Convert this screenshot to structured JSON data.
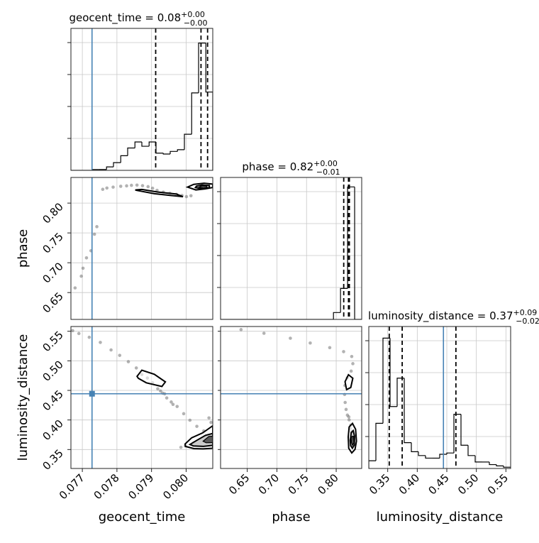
{
  "accent_color": "#4682b4",
  "chart_data": {
    "type": "corner",
    "parameters": [
      "geocent_time",
      "phase",
      "luminosity_distance"
    ],
    "axis_labels": {
      "geocent_time": "geocent_time",
      "phase": "phase",
      "luminosity_distance": "luminosity_distance"
    },
    "ranges": {
      "geocent_time": [
        0.07667,
        0.08077
      ],
      "phase": [
        0.605,
        0.843
      ],
      "luminosity_distance": [
        0.318,
        0.558
      ]
    },
    "ticks": {
      "geocent_time": [
        0.077,
        0.078,
        0.079,
        0.08
      ],
      "phase": [
        0.65,
        0.7,
        0.75,
        0.8
      ],
      "luminosity_distance": [
        0.35,
        0.4,
        0.45,
        0.5,
        0.55
      ]
    },
    "tick_labels": {
      "geocent_time": [
        "0.077",
        "0.078",
        "0.079",
        "0.080"
      ],
      "phase": [
        "0.65",
        "0.70",
        "0.75",
        "0.80"
      ],
      "luminosity_distance": [
        "0.35",
        "0.40",
        "0.45",
        "0.50",
        "0.55"
      ]
    },
    "titles": {
      "geocent_time": {
        "text": "geocent_time = 0.08",
        "plus": "+0.00",
        "minus": "−0.00"
      },
      "phase": {
        "text": "phase = 0.82",
        "plus": "+0.00",
        "minus": "−0.01"
      },
      "luminosity_distance": {
        "text": "luminosity_distance = 0.37",
        "plus": "+0.09",
        "minus": "−0.02"
      }
    },
    "truths": {
      "geocent_time": 0.07728,
      "phase": null,
      "luminosity_distance": 0.4443
    },
    "quantiles": {
      "geocent_time": [
        0.07912,
        0.08043,
        0.08062
      ],
      "phase": [
        0.8127,
        0.8207,
        0.8222
      ],
      "luminosity_distance": [
        0.3526,
        0.3745,
        0.4654
      ]
    },
    "histograms": {
      "geocent_time": {
        "edges": [
          0.07667,
          0.07688,
          0.07708,
          0.07729,
          0.07749,
          0.0777,
          0.0779,
          0.07811,
          0.07831,
          0.07852,
          0.07872,
          0.07893,
          0.07913,
          0.07934,
          0.07954,
          0.07975,
          0.07995,
          0.08016,
          0.08036,
          0.08057,
          0.08077
        ],
        "counts": [
          0,
          0,
          0,
          1,
          1,
          4,
          9,
          17,
          26,
          33,
          28,
          33,
          20,
          19,
          22,
          24,
          42,
          90,
          148,
          91
        ],
        "ymax": 165
      },
      "phase": {
        "edges": [
          0.605,
          0.6169,
          0.6288,
          0.6407,
          0.6526,
          0.6645,
          0.6764,
          0.6883,
          0.7002,
          0.7121,
          0.724,
          0.7359,
          0.7478,
          0.7597,
          0.7716,
          0.7835,
          0.7954,
          0.8073,
          0.8192,
          0.8311,
          0.843
        ],
        "counts": [
          0,
          0,
          0,
          0,
          0,
          0,
          0,
          0,
          0,
          0,
          0,
          0,
          0,
          0,
          0,
          0,
          8,
          36,
          154,
          0
        ],
        "ymax": 165
      },
      "luminosity_distance": {
        "edges": [
          0.318,
          0.33,
          0.342,
          0.354,
          0.366,
          0.378,
          0.39,
          0.402,
          0.414,
          0.426,
          0.438,
          0.45,
          0.462,
          0.474,
          0.486,
          0.498,
          0.51,
          0.522,
          0.534,
          0.546,
          0.558
        ],
        "counts": [
          6,
          35,
          101,
          48,
          70,
          20,
          13,
          10,
          8,
          8,
          11,
          12,
          42,
          18,
          10,
          5,
          5,
          3,
          2,
          1
        ],
        "ymax": 110
      }
    },
    "samples": {
      "geocent_time_phase": [
        [
          0.07828,
          0.8289
        ],
        [
          0.07842,
          0.8298
        ],
        [
          0.07858,
          0.8302
        ],
        [
          0.07874,
          0.8292
        ],
        [
          0.0789,
          0.8276
        ],
        [
          0.07903,
          0.8249
        ],
        [
          0.07916,
          0.8214
        ],
        [
          0.07934,
          0.8184
        ],
        [
          0.07953,
          0.8165
        ],
        [
          0.07972,
          0.8146
        ],
        [
          0.07988,
          0.8128
        ],
        [
          0.08001,
          0.8108
        ],
        [
          0.08014,
          0.8123
        ],
        [
          0.0803,
          0.8242
        ],
        [
          0.08044,
          0.8278
        ],
        [
          0.08056,
          0.8284
        ],
        [
          0.08066,
          0.8272
        ],
        [
          0.08048,
          0.8294
        ],
        [
          0.08037,
          0.8266
        ],
        [
          0.07811,
          0.8282
        ],
        [
          0.07789,
          0.8268
        ],
        [
          0.07771,
          0.8253
        ],
        [
          0.07759,
          0.8231
        ],
        [
          0.07742,
          0.7605
        ],
        [
          0.07725,
          0.7201
        ],
        [
          0.07712,
          0.7082
        ],
        [
          0.07697,
          0.6775
        ],
        [
          0.07679,
          0.6578
        ],
        [
          0.07702,
          0.6908
        ],
        [
          0.07735,
          0.7478
        ]
      ],
      "geocent_time_luminosity_distance": [
        [
          0.07672,
          0.551
        ],
        [
          0.0769,
          0.5462
        ],
        [
          0.0772,
          0.5398
        ],
        [
          0.07752,
          0.5311
        ],
        [
          0.07783,
          0.5184
        ],
        [
          0.07808,
          0.5092
        ],
        [
          0.07833,
          0.4985
        ],
        [
          0.07856,
          0.4879
        ],
        [
          0.07872,
          0.4768
        ],
        [
          0.07888,
          0.4709
        ],
        [
          0.07903,
          0.4628
        ],
        [
          0.07918,
          0.4527
        ],
        [
          0.07932,
          0.4453
        ],
        [
          0.07944,
          0.4372
        ],
        [
          0.07957,
          0.4304
        ],
        [
          0.07974,
          0.4228
        ],
        [
          0.07993,
          0.4106
        ],
        [
          0.08011,
          0.3996
        ],
        [
          0.08031,
          0.3892
        ],
        [
          0.08051,
          0.3815
        ],
        [
          0.08063,
          0.3735
        ],
        [
          0.08042,
          0.3652
        ],
        [
          0.08021,
          0.3612
        ],
        [
          0.07998,
          0.3562
        ],
        [
          0.07985,
          0.3538
        ],
        [
          0.08072,
          0.3958
        ],
        [
          0.08066,
          0.4035
        ],
        [
          0.07938,
          0.4442
        ],
        [
          0.07926,
          0.4489
        ],
        [
          0.07962,
          0.4263
        ]
      ],
      "phase_luminosity_distance": [
        [
          0.6395,
          0.5528
        ],
        [
          0.6782,
          0.5466
        ],
        [
          0.7227,
          0.5382
        ],
        [
          0.7562,
          0.5301
        ],
        [
          0.7891,
          0.5223
        ],
        [
          0.8125,
          0.5155
        ],
        [
          0.8262,
          0.5073
        ],
        [
          0.8281,
          0.4952
        ],
        [
          0.8252,
          0.4826
        ],
        [
          0.8188,
          0.4711
        ],
        [
          0.8147,
          0.4582
        ],
        [
          0.8142,
          0.4431
        ],
        [
          0.8151,
          0.4296
        ],
        [
          0.8167,
          0.4178
        ],
        [
          0.8189,
          0.4082
        ],
        [
          0.8218,
          0.4002
        ],
        [
          0.8246,
          0.3912
        ],
        [
          0.8257,
          0.3802
        ],
        [
          0.8261,
          0.3705
        ],
        [
          0.8252,
          0.3611
        ],
        [
          0.8271,
          0.3555
        ],
        [
          0.8233,
          0.3651
        ],
        [
          0.8277,
          0.3752
        ],
        [
          0.8238,
          0.3856
        ],
        [
          0.8213,
          0.4052
        ]
      ]
    },
    "contours": {
      "geocent_time_phase": [
        {
          "level": "outer",
          "points": [
            [
              0.07858,
              0.8212
            ],
            [
              0.07908,
              0.8158
            ],
            [
              0.07958,
              0.8126
            ],
            [
              0.07991,
              0.8108
            ],
            [
              0.07972,
              0.8151
            ],
            [
              0.07917,
              0.8186
            ],
            [
              0.07872,
              0.8229
            ],
            [
              0.07853,
              0.8221
            ]
          ]
        },
        {
          "level": "outer",
          "points": [
            [
              0.08004,
              0.8268
            ],
            [
              0.08028,
              0.8221
            ],
            [
              0.08055,
              0.8238
            ],
            [
              0.08077,
              0.8262
            ],
            [
              0.08077,
              0.8318
            ],
            [
              0.08052,
              0.8334
            ],
            [
              0.08022,
              0.8314
            ]
          ]
        },
        {
          "level": "inner",
          "points": [
            [
              0.08027,
              0.8262
            ],
            [
              0.08047,
              0.8239
            ],
            [
              0.08067,
              0.8254
            ],
            [
              0.08067,
              0.8296
            ],
            [
              0.08046,
              0.8304
            ],
            [
              0.0803,
              0.8286
            ]
          ]
        },
        {
          "level": "core",
          "points": [
            [
              0.08038,
              0.8268
            ],
            [
              0.0805,
              0.8252
            ],
            [
              0.08061,
              0.8264
            ],
            [
              0.08059,
              0.8285
            ],
            [
              0.08045,
              0.8289
            ]
          ]
        }
      ],
      "geocent_time_luminosity_distance": [
        {
          "level": "outer",
          "points": [
            [
              0.07858,
              0.4738
            ],
            [
              0.07872,
              0.4842
            ],
            [
              0.07908,
              0.4772
            ],
            [
              0.0794,
              0.4644
            ],
            [
              0.0793,
              0.4566
            ],
            [
              0.07885,
              0.4628
            ],
            [
              0.07862,
              0.4704
            ]
          ]
        },
        {
          "level": "outer",
          "points": [
            [
              0.07997,
              0.3594
            ],
            [
              0.08016,
              0.3699
            ],
            [
              0.08048,
              0.3783
            ],
            [
              0.08077,
              0.3902
            ],
            [
              0.08077,
              0.3522
            ],
            [
              0.08049,
              0.3511
            ],
            [
              0.08022,
              0.3516
            ],
            [
              0.07998,
              0.3553
            ]
          ]
        },
        {
          "level": "inner",
          "points": [
            [
              0.08011,
              0.3586
            ],
            [
              0.08031,
              0.3656
            ],
            [
              0.08056,
              0.3741
            ],
            [
              0.08077,
              0.3773
            ],
            [
              0.08077,
              0.3571
            ],
            [
              0.0805,
              0.3553
            ],
            [
              0.08021,
              0.3561
            ]
          ]
        },
        {
          "level": "core",
          "points": [
            [
              0.08049,
              0.3641
            ],
            [
              0.08066,
              0.3722
            ],
            [
              0.08077,
              0.3726
            ],
            [
              0.08077,
              0.3618
            ],
            [
              0.08058,
              0.3615
            ]
          ]
        }
      ],
      "phase_luminosity_distance": [
        {
          "level": "outer",
          "points": [
            [
              0.8149,
              0.4646
            ],
            [
              0.8206,
              0.4765
            ],
            [
              0.8281,
              0.4705
            ],
            [
              0.8246,
              0.4549
            ],
            [
              0.8175,
              0.4513
            ]
          ]
        },
        {
          "level": "outer",
          "points": [
            [
              0.8203,
              0.3712
            ],
            [
              0.8218,
              0.3882
            ],
            [
              0.8274,
              0.3942
            ],
            [
              0.8327,
              0.3842
            ],
            [
              0.8342,
              0.3643
            ],
            [
              0.8318,
              0.3503
            ],
            [
              0.8262,
              0.3443
            ],
            [
              0.8211,
              0.3521
            ]
          ]
        },
        {
          "level": "inner",
          "points": [
            [
              0.8238,
              0.3655
            ],
            [
              0.8253,
              0.3786
            ],
            [
              0.8287,
              0.3821
            ],
            [
              0.8309,
              0.3728
            ],
            [
              0.8306,
              0.3576
            ],
            [
              0.8273,
              0.3522
            ],
            [
              0.8244,
              0.3566
            ]
          ]
        },
        {
          "level": "core",
          "points": [
            [
              0.8255,
              0.3632
            ],
            [
              0.8266,
              0.3724
            ],
            [
              0.8292,
              0.3725
            ],
            [
              0.8298,
              0.3617
            ],
            [
              0.8274,
              0.3571
            ]
          ]
        }
      ]
    },
    "grid": true
  }
}
